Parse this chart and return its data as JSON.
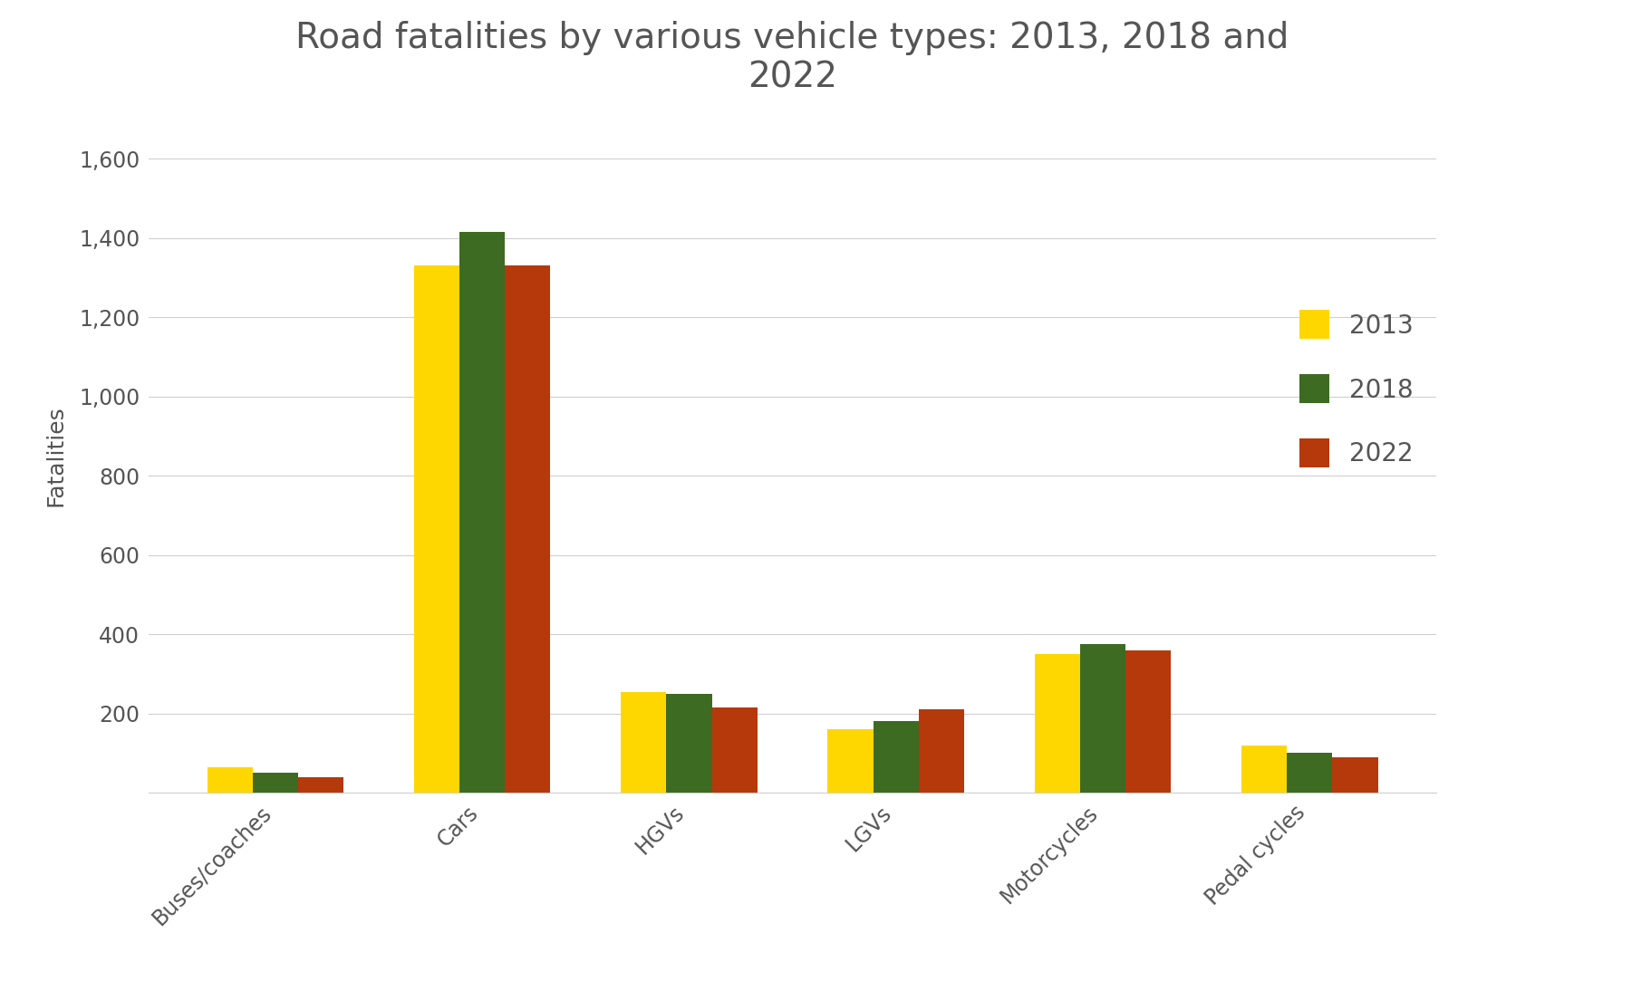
{
  "title": "Road fatalities by various vehicle types: 2013, 2018 and\n2022",
  "ylabel": "Fatalities",
  "categories": [
    "Buses/coaches",
    "Cars",
    "HGVs",
    "LGVs",
    "Motorcycles",
    "Pedal cycles"
  ],
  "years": [
    "2013",
    "2018",
    "2022"
  ],
  "values": {
    "2013": [
      65,
      1330,
      255,
      160,
      350,
      120
    ],
    "2018": [
      50,
      1415,
      250,
      180,
      375,
      100
    ],
    "2022": [
      40,
      1330,
      215,
      210,
      360,
      90
    ]
  },
  "colors": {
    "2013": "#FFD700",
    "2018": "#3D6B22",
    "2022": "#B5390A"
  },
  "ylim": [
    0,
    1700
  ],
  "yticks": [
    0,
    200,
    400,
    600,
    800,
    1000,
    1200,
    1400,
    1600
  ],
  "ytick_labels": [
    "",
    "200",
    "400",
    "600",
    "800",
    "1,000",
    "1,200",
    "1,400",
    "1,600"
  ],
  "background_color": "#FFFFFF",
  "title_fontsize": 28,
  "axis_label_fontsize": 18,
  "tick_fontsize": 17,
  "legend_fontsize": 20,
  "bar_width": 0.22
}
